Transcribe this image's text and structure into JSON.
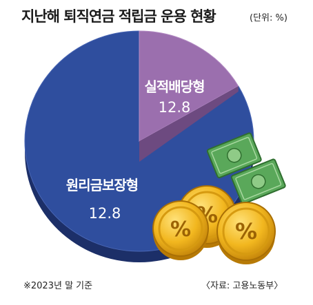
{
  "header": {
    "title": "지난해 퇴직연금 적립금 운용 현황",
    "unit": "(단위: %)"
  },
  "footer": {
    "note": "※2023년 말 기준",
    "source": "〈자료: 고용노동부〉"
  },
  "colors": {
    "principal": "#2f4e9e",
    "principal_dark": "#1c2f68",
    "performance": "#9b6fae",
    "performance_dark": "#6d4a80",
    "coin": "#f2b71f",
    "bill": "#5aa85a"
  },
  "icons": [
    "coin-icon",
    "banknote-icon"
  ],
  "chart_data": {
    "type": "pie",
    "title": "지난해 퇴직연금 적립금 운용 현황",
    "unit": "%",
    "slices": [
      {
        "label": "실적배당형",
        "value": 12.8
      },
      {
        "label": "원리금보장형",
        "value": 12.8
      }
    ],
    "value_labels": [
      "12.8",
      "12.8"
    ]
  }
}
